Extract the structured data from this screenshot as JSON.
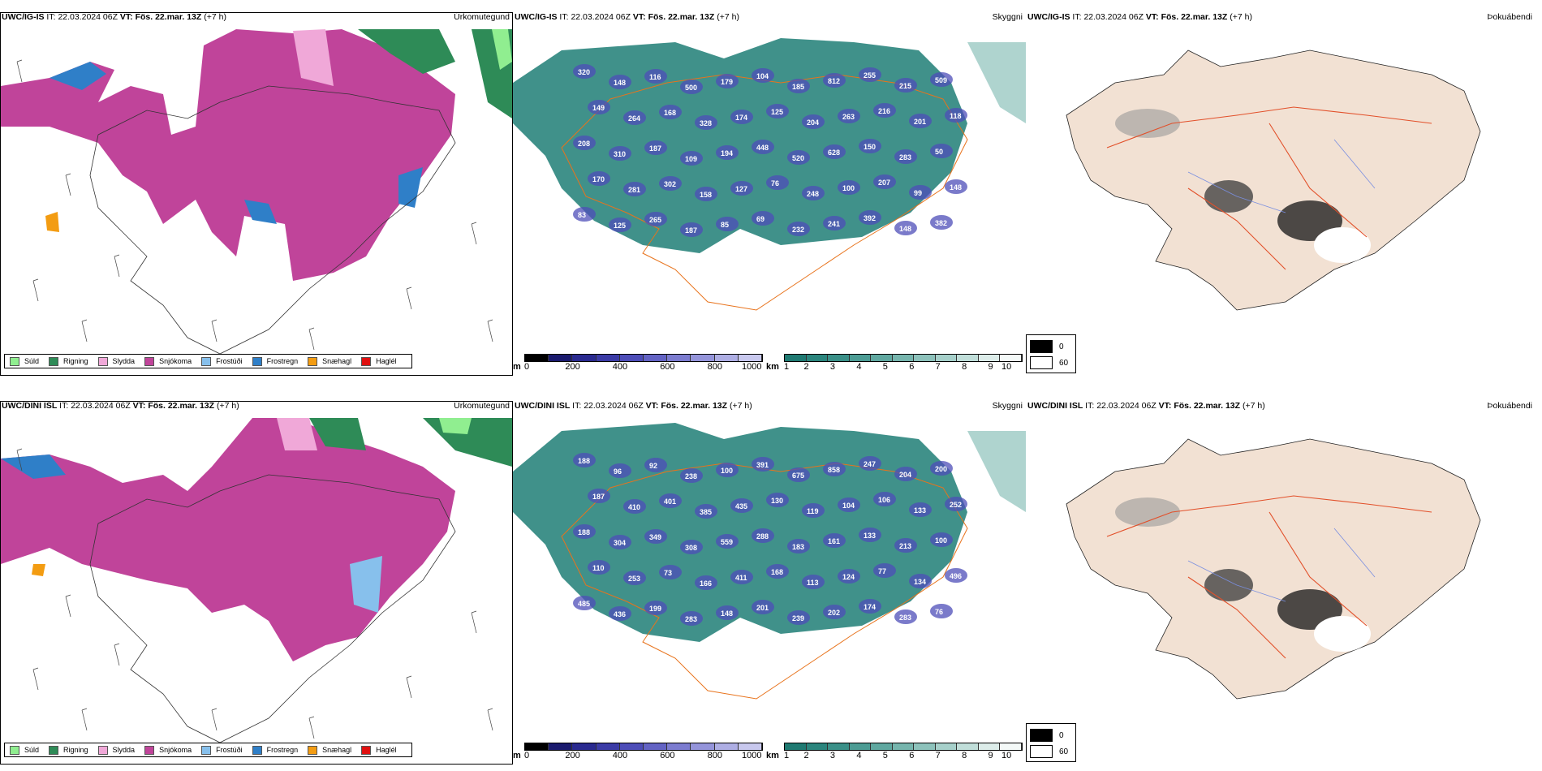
{
  "rows": [
    {
      "model": "UWC/IG-IS",
      "it_label": "IT:",
      "it_value": "22.03.2024 06Z",
      "vt_label": "VT:",
      "vt_value": "Fös. 22.mar. 13Z",
      "lead": "(+7 h)",
      "panels": [
        {
          "title": "Úrkomutegund"
        },
        {
          "title": "Skyggni"
        },
        {
          "title": "Þokuábendi"
        }
      ],
      "cloud_labels": [
        "320",
        "148",
        "116",
        "500",
        "179",
        "104",
        "185",
        "812",
        "255",
        "215",
        "509",
        "149",
        "264",
        "168",
        "328",
        "174",
        "125",
        "204",
        "263",
        "216",
        "201",
        "118",
        "208",
        "310",
        "187",
        "109",
        "194",
        "448",
        "520",
        "628",
        "150",
        "283",
        "50",
        "170",
        "281",
        "302",
        "158",
        "127",
        "76",
        "248",
        "100",
        "207",
        "99",
        "148",
        "83",
        "125",
        "265",
        "187",
        "85",
        "69",
        "232",
        "241",
        "392",
        "148",
        "382"
      ]
    },
    {
      "model": "UWC/DINI ISL",
      "it_label": "IT:",
      "it_value": "22.03.2024 06Z",
      "vt_label": "VT:",
      "vt_value": "Fös. 22.mar. 13Z",
      "lead": "(+7 h)",
      "panels": [
        {
          "title": "Úrkomutegund"
        },
        {
          "title": "Skyggni"
        },
        {
          "title": "Þokuábendi"
        }
      ],
      "cloud_labels": [
        "188",
        "96",
        "92",
        "238",
        "100",
        "391",
        "675",
        "858",
        "247",
        "204",
        "200",
        "187",
        "410",
        "401",
        "385",
        "435",
        "130",
        "119",
        "104",
        "106",
        "133",
        "252",
        "188",
        "304",
        "349",
        "308",
        "559",
        "288",
        "183",
        "161",
        "133",
        "213",
        "100",
        "110",
        "253",
        "73",
        "166",
        "411",
        "168",
        "113",
        "124",
        "77",
        "134",
        "496",
        "485",
        "436",
        "199",
        "283",
        "148",
        "201",
        "239",
        "202",
        "174",
        "283",
        "76"
      ]
    }
  ],
  "precip_legend": [
    {
      "label": "Súld",
      "color": "#90ee90"
    },
    {
      "label": "Rigning",
      "color": "#2e8b57"
    },
    {
      "label": "Slydda",
      "color": "#f0a8d8"
    },
    {
      "label": "Snjókoma",
      "color": "#c0449a"
    },
    {
      "label": "Frostúði",
      "color": "#87c0ec"
    },
    {
      "label": "Frostregn",
      "color": "#2f7fc8"
    },
    {
      "label": "Snæhagl",
      "color": "#f39c12"
    },
    {
      "label": "Haglél",
      "color": "#e01010"
    }
  ],
  "cloud_scale": {
    "unit": "m",
    "ticks": [
      "0",
      "200",
      "400",
      "600",
      "800",
      "1000"
    ],
    "colors": [
      "#000000",
      "#1a1a6e",
      "#2a2a90",
      "#3b3ba6",
      "#4d4db8",
      "#6363c4",
      "#7c7cd0",
      "#9494da",
      "#aeaee4",
      "#c8c8ee"
    ]
  },
  "vis_scale": {
    "unit": "km",
    "ticks": [
      "1",
      "2",
      "3",
      "4",
      "5",
      "6",
      "7",
      "8",
      "9",
      "10"
    ],
    "colors": [
      "#1f7a72",
      "#2b857d",
      "#3a9088",
      "#4c9c94",
      "#60a8a0",
      "#76b5ad",
      "#8dc2bb",
      "#a6d0ca",
      "#c0ded9",
      "#dcece9",
      "#f4f9f8"
    ]
  },
  "fog_legend": [
    {
      "label": "0",
      "color": "#000000"
    },
    {
      "label": "60",
      "color": "#ffffff"
    }
  ],
  "colors": {
    "snow": "#c0449a",
    "sleet": "#f0a8d8",
    "rain": "#2e8b57",
    "drizzle": "#90ee90",
    "freezing": "#2f7fc8",
    "vis_teal": "#2b857d",
    "roads": "#e8731c",
    "land_fog": "#f2e1d3"
  }
}
